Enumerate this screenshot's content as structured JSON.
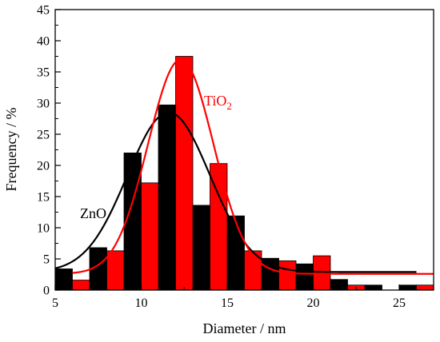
{
  "chart_data": {
    "type": "bar",
    "xlabel": "Diameter / nm",
    "ylabel": "Frequency / %",
    "xlim": [
      5,
      27
    ],
    "ylim": [
      0,
      45
    ],
    "xticks": [
      "5",
      "10",
      "15",
      "20",
      "25"
    ],
    "yticks": [
      "0",
      "5",
      "10",
      "15",
      "20",
      "25",
      "30",
      "35",
      "40",
      "45"
    ],
    "grid": false,
    "bin_width": 1,
    "series": [
      {
        "name": "ZnO",
        "color": "#000000",
        "bin_centers": [
          5.5,
          7.5,
          9.5,
          11.5,
          13.5,
          15.5,
          17.5,
          19.5,
          21.5,
          23.5,
          25.5
        ],
        "values": [
          3.4,
          6.8,
          22.0,
          29.7,
          13.6,
          11.9,
          5.1,
          4.2,
          1.7,
          0.8,
          0.8
        ],
        "fit": {
          "type": "gaussian",
          "baseline": 2.9,
          "amplitude": 25.6,
          "center": 11.6,
          "sigma": 2.4
        }
      },
      {
        "name": "TiO2",
        "color": "#ff0000",
        "bin_centers": [
          6.5,
          8.5,
          10.5,
          12.5,
          14.5,
          16.5,
          18.5,
          20.5,
          22.5,
          24.5,
          26.5
        ],
        "values": [
          1.6,
          6.3,
          17.2,
          37.5,
          20.3,
          6.3,
          4.7,
          5.5,
          0.8,
          0,
          0.8
        ],
        "fit": {
          "type": "gaussian",
          "baseline": 2.6,
          "amplitude": 34.4,
          "center": 12.3,
          "sigma": 1.9
        }
      }
    ],
    "annotations": [
      {
        "text": "ZnO",
        "series": "ZnO"
      },
      {
        "text": "TiO",
        "subscript": "2",
        "series": "TiO2"
      }
    ]
  }
}
